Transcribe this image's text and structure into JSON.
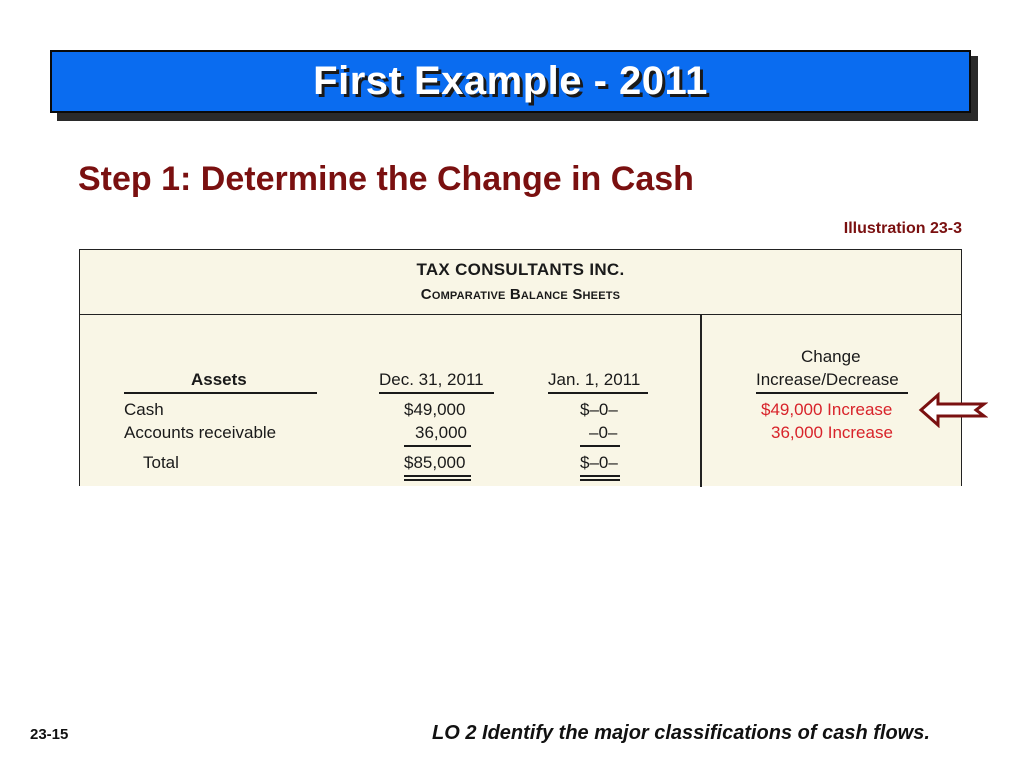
{
  "slide": {
    "title": "First Example - 2011",
    "step_heading": "Step 1: Determine the Change in Cash",
    "illustration_label": "Illustration 23-3",
    "page_number": "23-15",
    "learning_objective": "LO 2  Identify the major classifications of cash flows."
  },
  "balance_sheet": {
    "company": "TAX CONSULTANTS INC.",
    "subtitle": "Comparative Balance Sheets",
    "columns": {
      "assets": "Assets",
      "dec": "Dec. 31, 2011",
      "jan": "Jan. 1, 2011",
      "change_line1": "Change",
      "change_line2": "Increase/Decrease"
    },
    "rows": [
      {
        "label": "Cash",
        "dec": "$49,000",
        "jan": "$–0–",
        "change": "$49,000 Increase"
      },
      {
        "label": "Accounts receivable",
        "dec": "36,000",
        "jan": "–0–",
        "change": "36,000 Increase"
      }
    ],
    "total": {
      "label": "Total",
      "dec": "$85,000",
      "jan": "$–0–"
    }
  },
  "colors": {
    "title_bar": "#0a6cf0",
    "heading": "#7a1010",
    "change_text": "#d8232a",
    "sheet_bg": "#f9f6e6"
  },
  "icons": {
    "pointer": "left-arrow-icon"
  }
}
